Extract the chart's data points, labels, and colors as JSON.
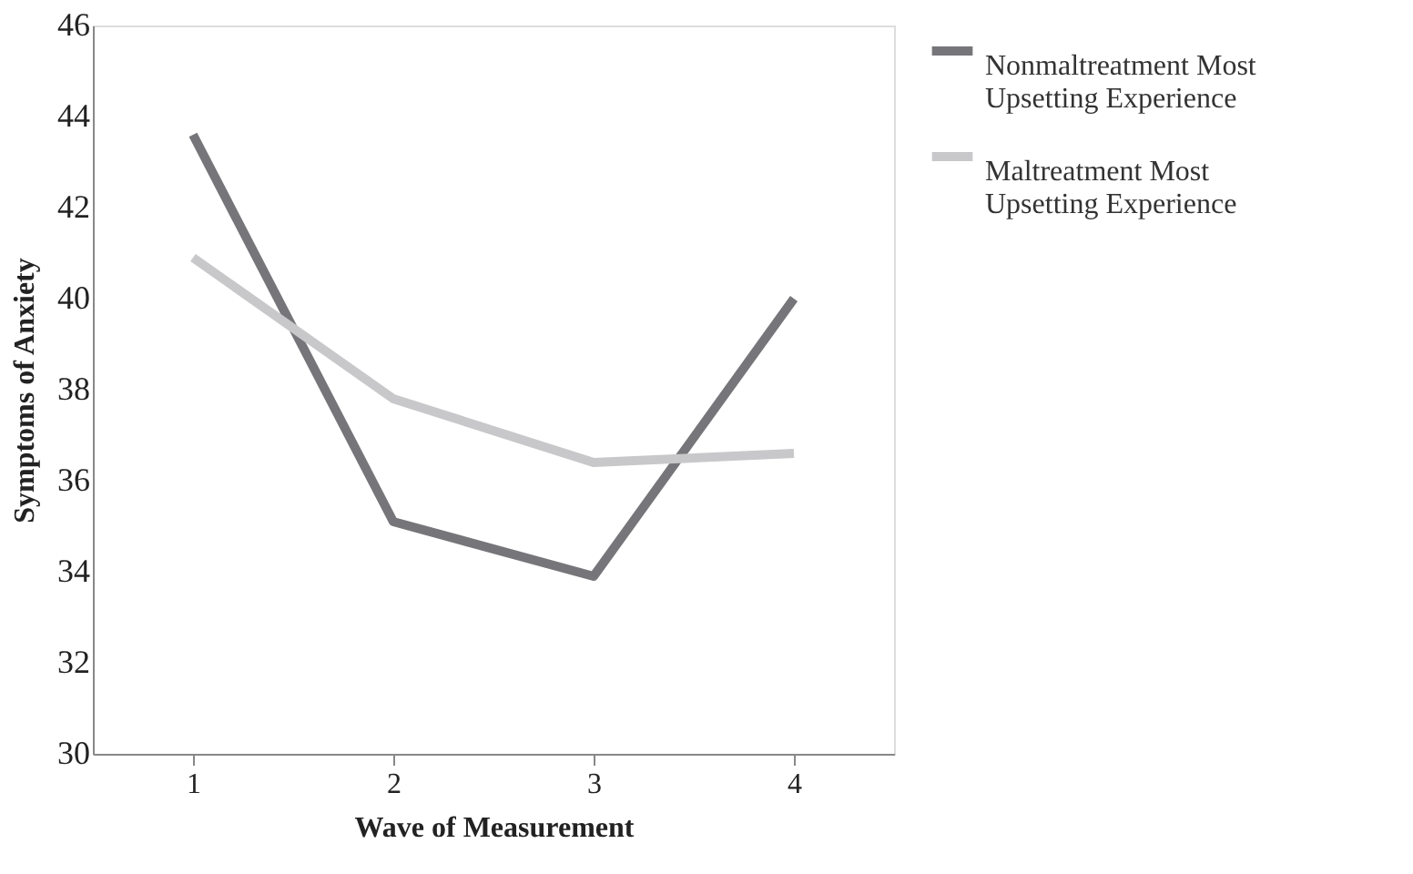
{
  "chart_data": {
    "type": "line",
    "xlabel": "Wave of Measurement",
    "ylabel": "Symptoms of Anxiety",
    "categories": [
      "1",
      "2",
      "3",
      "4"
    ],
    "series": [
      {
        "name": "Nonmaltreatment Most Upsetting Experience",
        "color": "#76767a",
        "values": [
          43.6,
          35.1,
          33.9,
          40.0
        ]
      },
      {
        "name": "Maltreatment Most Upsetting Experience",
        "color": "#c8c8ca",
        "values": [
          40.9,
          37.8,
          36.4,
          36.6
        ]
      }
    ],
    "ylim": [
      30,
      46
    ],
    "yticks": [
      30,
      32,
      34,
      36,
      38,
      40,
      42,
      44,
      46
    ],
    "grid": false,
    "legend": "right",
    "marker": "none",
    "line_style": "solid"
  }
}
